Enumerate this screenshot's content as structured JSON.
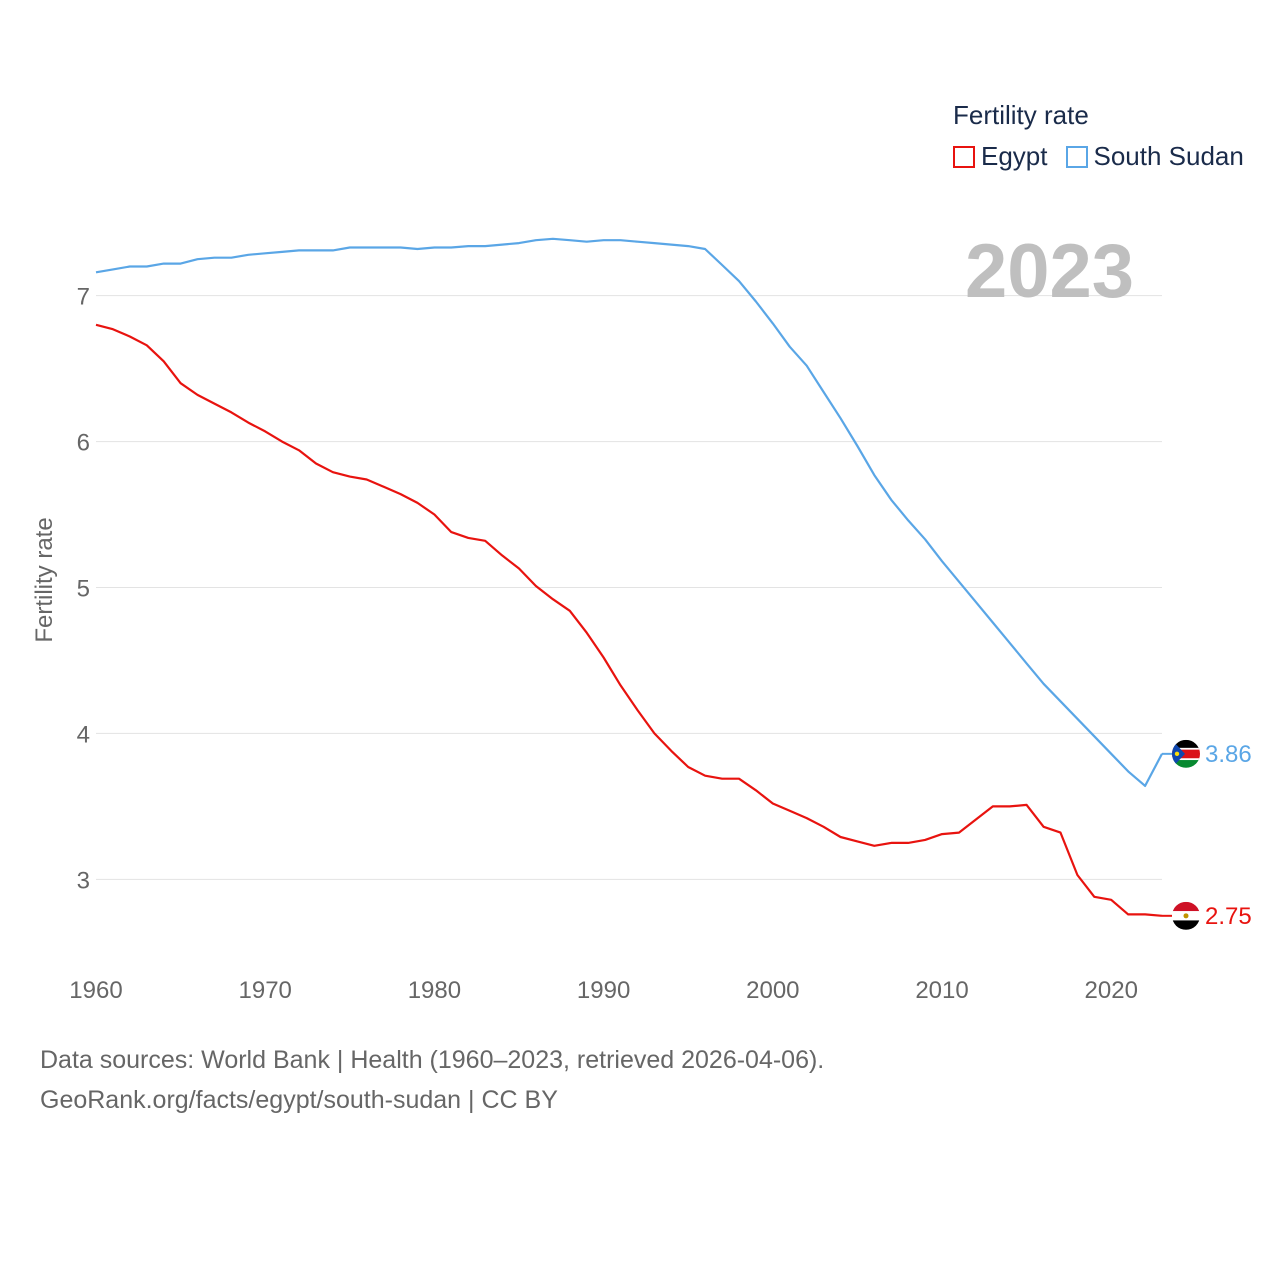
{
  "legend": {
    "title": "Fertility rate",
    "items": [
      {
        "label": "Egypt",
        "color": "#e8130f"
      },
      {
        "label": "South Sudan",
        "color": "#5aa6e6"
      }
    ]
  },
  "year_label": "2023",
  "footer": {
    "line1": "Data sources: World Bank | Health (1960–2023, retrieved 2026-04-06).",
    "line2_link": "GeoRank.org/facts/egypt/south-sudan",
    "line2_suffix": " | CC BY"
  },
  "chart_data": {
    "type": "line",
    "ylabel": "Fertility rate",
    "xlabel": "",
    "xlim": [
      1960,
      2023
    ],
    "ylim": [
      2.55,
      7.45
    ],
    "yticks": [
      3,
      4,
      5,
      6,
      7
    ],
    "xticks": [
      1960,
      1970,
      1980,
      1990,
      2000,
      2010,
      2020
    ],
    "grid": true,
    "x": [
      1960,
      1961,
      1962,
      1963,
      1964,
      1965,
      1966,
      1967,
      1968,
      1969,
      1970,
      1971,
      1972,
      1973,
      1974,
      1975,
      1976,
      1977,
      1978,
      1979,
      1980,
      1981,
      1982,
      1983,
      1984,
      1985,
      1986,
      1987,
      1988,
      1989,
      1990,
      1991,
      1992,
      1993,
      1994,
      1995,
      1996,
      1997,
      1998,
      1999,
      2000,
      2001,
      2002,
      2003,
      2004,
      2005,
      2006,
      2007,
      2008,
      2009,
      2010,
      2011,
      2012,
      2013,
      2014,
      2015,
      2016,
      2017,
      2018,
      2019,
      2020,
      2021,
      2022,
      2023
    ],
    "series": [
      {
        "name": "Egypt",
        "color": "#e8130f",
        "end_label": "2.75",
        "values": [
          6.8,
          6.77,
          6.72,
          6.66,
          6.55,
          6.4,
          6.32,
          6.26,
          6.2,
          6.13,
          6.07,
          6.0,
          5.94,
          5.85,
          5.79,
          5.76,
          5.74,
          5.69,
          5.64,
          5.58,
          5.5,
          5.38,
          5.34,
          5.32,
          5.22,
          5.13,
          5.01,
          4.92,
          4.84,
          4.69,
          4.52,
          4.33,
          4.16,
          4.0,
          3.88,
          3.77,
          3.71,
          3.69,
          3.69,
          3.61,
          3.52,
          3.47,
          3.42,
          3.36,
          3.29,
          3.26,
          3.23,
          3.25,
          3.25,
          3.27,
          3.31,
          3.32,
          3.41,
          3.5,
          3.5,
          3.51,
          3.36,
          3.32,
          3.03,
          2.88,
          2.86,
          2.76,
          2.76,
          2.75
        ]
      },
      {
        "name": "South Sudan",
        "color": "#5aa6e6",
        "end_label": "3.86",
        "values": [
          7.16,
          7.18,
          7.2,
          7.2,
          7.22,
          7.22,
          7.25,
          7.26,
          7.26,
          7.28,
          7.29,
          7.3,
          7.31,
          7.31,
          7.31,
          7.33,
          7.33,
          7.33,
          7.33,
          7.32,
          7.33,
          7.33,
          7.34,
          7.34,
          7.35,
          7.36,
          7.38,
          7.39,
          7.38,
          7.37,
          7.38,
          7.38,
          7.37,
          7.36,
          7.35,
          7.34,
          7.32,
          7.21,
          7.1,
          6.96,
          6.81,
          6.65,
          6.52,
          6.34,
          6.16,
          5.97,
          5.77,
          5.6,
          5.46,
          5.33,
          5.18,
          5.04,
          4.9,
          4.76,
          4.62,
          4.48,
          4.34,
          4.22,
          4.1,
          3.98,
          3.86,
          3.74,
          3.64,
          3.86
        ]
      }
    ]
  }
}
